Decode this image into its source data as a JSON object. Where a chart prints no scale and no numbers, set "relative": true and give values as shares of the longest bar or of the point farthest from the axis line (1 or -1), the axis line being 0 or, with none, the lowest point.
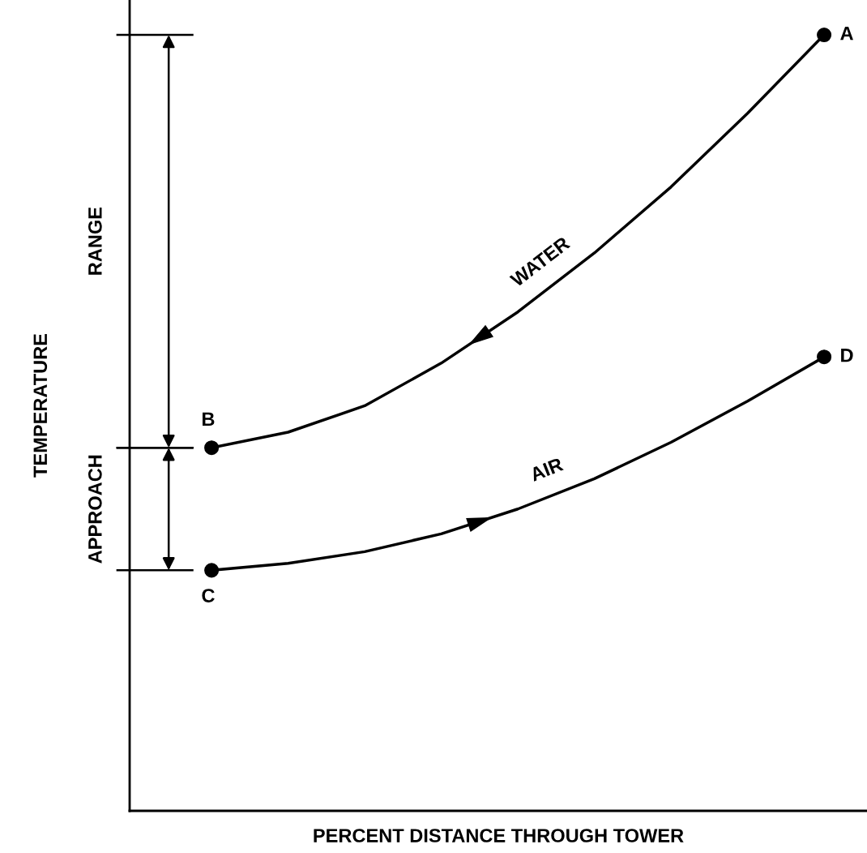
{
  "chart_data": {
    "type": "line",
    "relative": true,
    "xlabel": "PERCENT DISTANCE THROUGH TOWER",
    "ylabel": "TEMPERATURE",
    "line_style": "solid",
    "categories": [
      null,
      null,
      null,
      null,
      null,
      null,
      null,
      null,
      null
    ],
    "series": [
      {
        "color": "#000000",
        "values": [
          0.468,
          0.488,
          0.522,
          0.577,
          0.643,
          0.719,
          0.804,
          0.899,
          1.0
        ]
      },
      {
        "color": "#000000",
        "values": [
          0.31,
          0.319,
          0.334,
          0.357,
          0.389,
          0.428,
          0.475,
          0.528,
          0.585
        ]
      }
    ],
    "annotations": [
      "A",
      "B",
      "C",
      "D",
      "WATER",
      "AIR",
      "RANGE",
      "APPROACH"
    ]
  }
}
